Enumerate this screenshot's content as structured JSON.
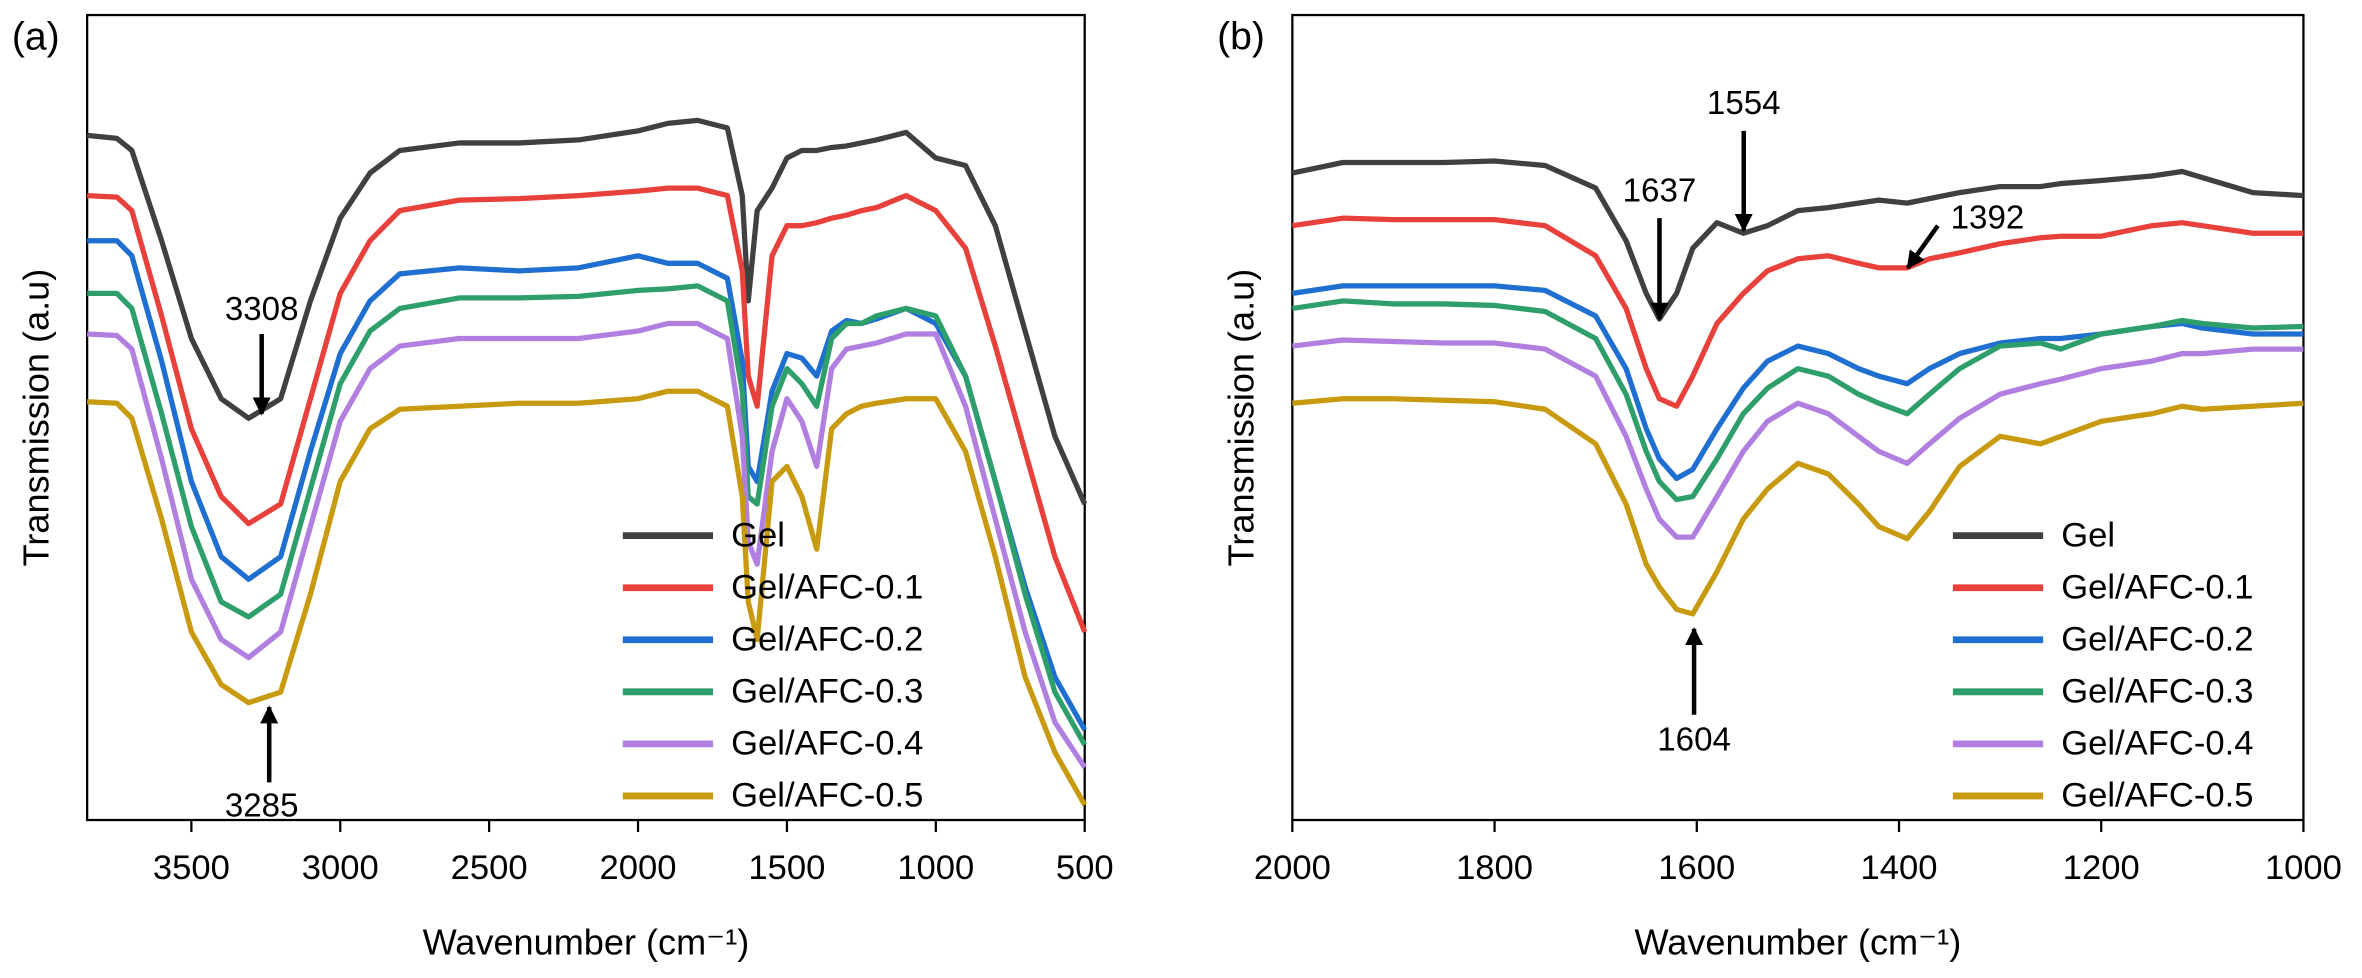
{
  "chart_data": [
    {
      "type": "line",
      "panel_label": "(a)",
      "x_label": "Wavenumber (cm⁻¹)",
      "y_label": "Transmission (a.u)",
      "x": [
        3850,
        3750,
        3700,
        3600,
        3500,
        3400,
        3308,
        3200,
        3100,
        3000,
        2900,
        2800,
        2600,
        2400,
        2200,
        2000,
        1900,
        1800,
        1700,
        1650,
        1630,
        1600,
        1550,
        1500,
        1450,
        1400,
        1350,
        1300,
        1250,
        1200,
        1100,
        1000,
        900,
        800,
        700,
        600,
        500
      ],
      "xlim": [
        3850,
        500
      ],
      "xticks": [
        3500,
        3000,
        2500,
        2000,
        1500,
        1000,
        500
      ],
      "ylim": [
        0,
        535
      ],
      "legend": "lower right",
      "annotations": [
        "3308",
        "3285"
      ],
      "series": [
        {
          "name": "Gel",
          "color": "#404040",
          "values": [
            455,
            453,
            445,
            385,
            320,
            280,
            267,
            280,
            345,
            400,
            430,
            445,
            450,
            450,
            452,
            458,
            463,
            465,
            460,
            415,
            345,
            405,
            420,
            440,
            445,
            445,
            447,
            448,
            450,
            452,
            457,
            440,
            435,
            395,
            325,
            255,
            210
          ]
        },
        {
          "name": "Gel/AFC-0.1",
          "color": "#e8403a",
          "values": [
            415,
            414,
            405,
            335,
            260,
            215,
            197,
            210,
            280,
            350,
            385,
            405,
            412,
            413,
            415,
            418,
            420,
            420,
            415,
            365,
            295,
            275,
            375,
            395,
            395,
            397,
            400,
            402,
            405,
            407,
            415,
            405,
            380,
            315,
            245,
            175,
            125
          ]
        },
        {
          "name": "Gel/AFC-0.2",
          "color": "#1f6fd1",
          "values": [
            385,
            385,
            375,
            305,
            225,
            175,
            160,
            175,
            245,
            310,
            345,
            363,
            367,
            365,
            367,
            375,
            370,
            370,
            360,
            305,
            235,
            225,
            285,
            310,
            307,
            295,
            325,
            332,
            330,
            333,
            340,
            330,
            295,
            225,
            155,
            95,
            60
          ]
        },
        {
          "name": "Gel/AFC-0.3",
          "color": "#2e9e6a",
          "values": [
            350,
            350,
            340,
            270,
            195,
            145,
            135,
            150,
            220,
            290,
            325,
            340,
            347,
            347,
            348,
            352,
            353,
            355,
            345,
            285,
            215,
            210,
            275,
            300,
            290,
            275,
            320,
            330,
            330,
            335,
            340,
            335,
            295,
            225,
            150,
            85,
            50
          ]
        },
        {
          "name": "Gel/AFC-0.4",
          "color": "#b07fe0",
          "values": [
            323,
            322,
            313,
            240,
            160,
            120,
            108,
            125,
            195,
            265,
            300,
            315,
            320,
            320,
            320,
            325,
            330,
            330,
            320,
            255,
            185,
            170,
            245,
            280,
            265,
            235,
            300,
            313,
            315,
            317,
            323,
            323,
            275,
            200,
            125,
            65,
            35
          ]
        },
        {
          "name": "Gel/AFC-0.5",
          "color": "#c89a10",
          "values": [
            278,
            277,
            267,
            200,
            125,
            90,
            78,
            85,
            150,
            225,
            260,
            273,
            275,
            277,
            277,
            280,
            285,
            285,
            275,
            215,
            145,
            120,
            225,
            235,
            215,
            180,
            260,
            270,
            275,
            277,
            280,
            280,
            245,
            175,
            95,
            45,
            10
          ]
        }
      ]
    },
    {
      "type": "line",
      "panel_label": "(b)",
      "x_label": "Wavenumber (cm⁻¹)",
      "y_label": "Transmission (a.u)",
      "x": [
        2000,
        1950,
        1900,
        1850,
        1800,
        1750,
        1700,
        1670,
        1650,
        1637,
        1620,
        1604,
        1580,
        1554,
        1530,
        1500,
        1470,
        1440,
        1420,
        1392,
        1370,
        1340,
        1300,
        1260,
        1240,
        1200,
        1150,
        1120,
        1100,
        1050,
        1000
      ],
      "xlim": [
        2000,
        1000
      ],
      "xticks": [
        2000,
        1800,
        1600,
        1400,
        1200,
        1000
      ],
      "ylim": [
        0,
        535
      ],
      "legend": "lower right",
      "annotations": [
        "1637",
        "1554",
        "1392",
        "1604"
      ],
      "series": [
        {
          "name": "Gel",
          "color": "#404040",
          "values": [
            430,
            437,
            437,
            437,
            438,
            435,
            420,
            385,
            350,
            333,
            350,
            380,
            397,
            390,
            395,
            405,
            407,
            410,
            412,
            410,
            413,
            417,
            421,
            421,
            423,
            425,
            428,
            431,
            427,
            417,
            415
          ]
        },
        {
          "name": "Gel/AFC-0.1",
          "color": "#e8403a",
          "values": [
            395,
            400,
            399,
            399,
            399,
            395,
            375,
            340,
            300,
            280,
            275,
            295,
            330,
            350,
            365,
            373,
            375,
            370,
            367,
            367,
            373,
            377,
            383,
            387,
            388,
            388,
            395,
            397,
            395,
            390,
            390
          ]
        },
        {
          "name": "Gel/AFC-0.2",
          "color": "#1f6fd1",
          "values": [
            350,
            355,
            355,
            355,
            355,
            352,
            335,
            300,
            260,
            240,
            227,
            233,
            260,
            287,
            305,
            315,
            310,
            300,
            295,
            290,
            300,
            310,
            317,
            320,
            320,
            323,
            328,
            330,
            327,
            323,
            323
          ]
        },
        {
          "name": "Gel/AFC-0.3",
          "color": "#2e9e6a",
          "values": [
            340,
            345,
            343,
            343,
            342,
            338,
            320,
            283,
            245,
            225,
            213,
            215,
            240,
            270,
            287,
            300,
            295,
            283,
            277,
            270,
            283,
            300,
            315,
            317,
            313,
            323,
            328,
            332,
            330,
            327,
            328
          ]
        },
        {
          "name": "Gel/AFC-0.4",
          "color": "#b07fe0",
          "values": [
            315,
            319,
            318,
            317,
            317,
            313,
            295,
            255,
            220,
            200,
            188,
            188,
            215,
            245,
            265,
            277,
            270,
            255,
            245,
            237,
            250,
            267,
            283,
            290,
            293,
            300,
            305,
            310,
            310,
            313,
            313
          ]
        },
        {
          "name": "Gel/AFC-0.5",
          "color": "#c89a10",
          "values": [
            277,
            280,
            280,
            279,
            278,
            273,
            250,
            210,
            170,
            155,
            140,
            137,
            165,
            200,
            220,
            237,
            230,
            210,
            195,
            187,
            205,
            235,
            255,
            250,
            255,
            265,
            270,
            275,
            273,
            275,
            277
          ]
        }
      ]
    }
  ]
}
